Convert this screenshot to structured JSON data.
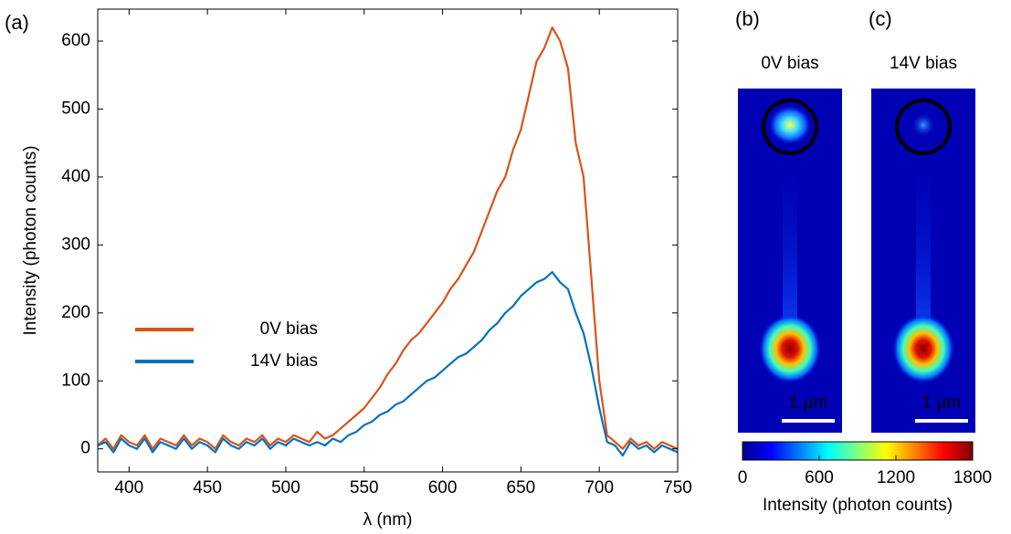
{
  "chart_data": [
    {
      "type": "line",
      "panel_label": "(a)",
      "xlabel": "λ (nm)",
      "ylabel": "Intensity (photon counts)",
      "xlim": [
        380,
        750
      ],
      "xticks": [
        400,
        450,
        500,
        550,
        600,
        650,
        700,
        750
      ],
      "ylim": [
        -34,
        647
      ],
      "yticks": [
        0,
        100,
        200,
        300,
        400,
        500,
        600
      ],
      "x": [
        380,
        385,
        390,
        395,
        400,
        405,
        410,
        415,
        420,
        425,
        430,
        435,
        440,
        445,
        450,
        455,
        460,
        465,
        470,
        475,
        480,
        485,
        490,
        495,
        500,
        505,
        510,
        515,
        520,
        525,
        530,
        535,
        540,
        545,
        550,
        555,
        560,
        565,
        570,
        575,
        580,
        585,
        590,
        595,
        600,
        605,
        610,
        615,
        620,
        625,
        630,
        635,
        640,
        645,
        650,
        655,
        660,
        665,
        670,
        675,
        680,
        685,
        690,
        695,
        700,
        705,
        710,
        715,
        720,
        725,
        730,
        735,
        740,
        745,
        750
      ],
      "series": [
        {
          "name": "0V bias",
          "color": "#d95319",
          "values": [
            5,
            15,
            0,
            20,
            10,
            5,
            20,
            0,
            15,
            10,
            5,
            20,
            5,
            15,
            10,
            0,
            20,
            10,
            5,
            15,
            10,
            20,
            5,
            15,
            10,
            20,
            15,
            10,
            25,
            15,
            20,
            30,
            40,
            50,
            60,
            75,
            90,
            110,
            125,
            145,
            160,
            170,
            185,
            200,
            215,
            235,
            250,
            270,
            290,
            320,
            350,
            380,
            400,
            440,
            470,
            520,
            570,
            590,
            620,
            600,
            560,
            450,
            400,
            250,
            100,
            20,
            10,
            0,
            15,
            5,
            10,
            0,
            10,
            5,
            0
          ]
        },
        {
          "name": "14V bias",
          "color": "#0072bd",
          "values": [
            5,
            10,
            -5,
            15,
            5,
            0,
            15,
            -5,
            10,
            5,
            0,
            15,
            0,
            10,
            5,
            -5,
            15,
            5,
            0,
            10,
            5,
            15,
            0,
            10,
            5,
            15,
            10,
            5,
            10,
            5,
            15,
            10,
            20,
            25,
            35,
            40,
            50,
            55,
            65,
            70,
            80,
            90,
            100,
            105,
            115,
            125,
            135,
            140,
            150,
            160,
            175,
            185,
            200,
            210,
            225,
            235,
            245,
            250,
            260,
            245,
            235,
            200,
            170,
            120,
            60,
            10,
            5,
            -10,
            10,
            0,
            5,
            -5,
            5,
            0,
            -5
          ]
        }
      ]
    },
    {
      "type": "image",
      "panels": [
        {
          "panel_label": "(b)",
          "title": "0V bias",
          "title_color": "#d95319",
          "scale_bar": "1 μm"
        },
        {
          "panel_label": "(c)",
          "title": "14V bias",
          "title_color": "#0072bd",
          "scale_bar": "1 μm"
        }
      ],
      "colorbar": {
        "lim": [
          0,
          1800
        ],
        "ticks": [
          0,
          600,
          1200,
          1800
        ],
        "label": "Intensity (photon counts)"
      }
    }
  ]
}
